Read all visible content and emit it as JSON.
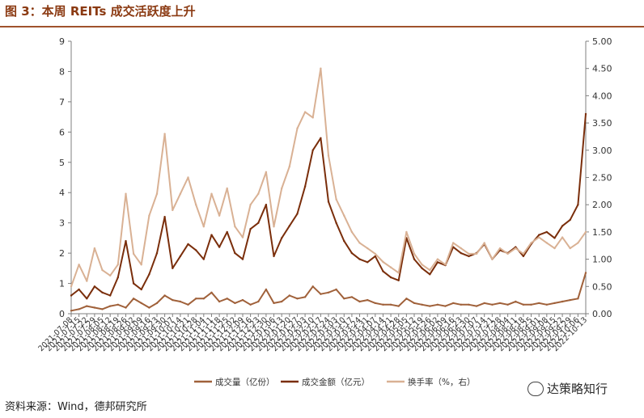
{
  "title": "图 3：本周 REITs 成交活跃度上升",
  "source": "资料来源：Wind，德邦研究所",
  "watermark": "达策略知行",
  "chart_data": {
    "type": "line",
    "y_left": {
      "min": 0,
      "max": 9,
      "ticks": [
        "0",
        "1",
        "2",
        "3",
        "4",
        "5",
        "6",
        "7",
        "8",
        "9"
      ]
    },
    "y_right": {
      "min": 0,
      "max": 5,
      "ticks": [
        "0.00",
        "0.50",
        "1.00",
        "1.50",
        "2.00",
        "2.50",
        "3.00",
        "3.50",
        "4.00",
        "4.50",
        "5.00"
      ]
    },
    "grid": false,
    "legend": "bottom",
    "x_start": "2021-07-08",
    "x_end": "2022-10-13",
    "x_tick_labels": [
      "2021-07-08",
      "2021-07-15",
      "2021-07-22",
      "2021-07-29",
      "2021-08-05",
      "2021-08-12",
      "2021-08-19",
      "2021-08-26",
      "2021-09-02",
      "2021-09-09",
      "2021-09-16",
      "2021-09-23",
      "2021-09-30",
      "2021-10-07",
      "2021-10-14",
      "2021-10-21",
      "2021-10-28",
      "2021-11-04",
      "2021-11-11",
      "2021-11-18",
      "2021-11-25",
      "2021-12-02",
      "2021-12-09",
      "2021-12-16",
      "2021-12-23",
      "2021-12-30",
      "2022-01-06",
      "2022-01-13",
      "2022-01-20",
      "2022-01-27",
      "2022-02-03",
      "2022-02-10",
      "2022-02-17",
      "2022-02-24",
      "2022-03-03",
      "2022-03-10",
      "2022-03-17",
      "2022-03-24",
      "2022-03-31",
      "2022-04-07",
      "2022-04-14",
      "2022-04-21",
      "2022-04-28",
      "2022-05-05",
      "2022-05-12",
      "2022-05-19",
      "2022-05-26",
      "2022-06-02",
      "2022-06-09",
      "2022-06-16",
      "2022-06-23",
      "2022-06-30",
      "2022-07-07",
      "2022-07-14",
      "2022-07-21",
      "2022-07-28",
      "2022-08-04",
      "2022-08-11",
      "2022-08-18",
      "2022-08-25",
      "2022-09-01",
      "2022-09-08",
      "2022-09-15",
      "2022-09-22",
      "2022-09-29",
      "2022-10-06",
      "2022-10-13"
    ],
    "x": [
      "2021-07-08",
      "2021-07-15",
      "2021-07-22",
      "2021-07-29",
      "2021-08-05",
      "2021-08-12",
      "2021-08-19",
      "2021-08-26",
      "2021-09-02",
      "2021-09-09",
      "2021-09-16",
      "2021-09-23",
      "2021-09-30",
      "2021-10-07",
      "2021-10-14",
      "2021-10-21",
      "2021-10-28",
      "2021-11-04",
      "2021-11-11",
      "2021-11-18",
      "2021-11-25",
      "2021-12-02",
      "2021-12-09",
      "2021-12-16",
      "2021-12-23",
      "2021-12-30",
      "2022-01-06",
      "2022-01-13",
      "2022-01-20",
      "2022-01-27",
      "2022-02-03",
      "2022-02-10",
      "2022-02-17",
      "2022-02-24",
      "2022-03-03",
      "2022-03-10",
      "2022-03-17",
      "2022-03-24",
      "2022-03-31",
      "2022-04-07",
      "2022-04-14",
      "2022-04-21",
      "2022-04-28",
      "2022-05-05",
      "2022-05-12",
      "2022-05-19",
      "2022-05-26",
      "2022-06-02",
      "2022-06-09",
      "2022-06-16",
      "2022-06-23",
      "2022-06-30",
      "2022-07-07",
      "2022-07-14",
      "2022-07-21",
      "2022-07-28",
      "2022-08-04",
      "2022-08-11",
      "2022-08-18",
      "2022-08-25",
      "2022-09-01",
      "2022-09-08",
      "2022-09-15",
      "2022-09-22",
      "2022-09-29",
      "2022-10-06",
      "2022-10-13"
    ],
    "series": [
      {
        "name": "成交量（亿份）",
        "axis": "left",
        "color": "#a0613a",
        "values": [
          0.1,
          0.15,
          0.25,
          0.2,
          0.15,
          0.25,
          0.3,
          0.2,
          0.5,
          0.35,
          0.2,
          0.35,
          0.6,
          0.45,
          0.4,
          0.3,
          0.5,
          0.5,
          0.7,
          0.4,
          0.5,
          0.35,
          0.45,
          0.3,
          0.4,
          0.8,
          0.35,
          0.4,
          0.6,
          0.5,
          0.55,
          0.9,
          0.65,
          0.7,
          0.8,
          0.5,
          0.55,
          0.4,
          0.45,
          0.35,
          0.3,
          0.3,
          0.25,
          0.5,
          0.35,
          0.3,
          0.25,
          0.3,
          0.25,
          0.35,
          0.3,
          0.3,
          0.25,
          0.35,
          0.3,
          0.35,
          0.3,
          0.4,
          0.3,
          0.3,
          0.35,
          0.3,
          0.35,
          0.4,
          0.45,
          0.5,
          1.35
        ]
      },
      {
        "name": "成交金额（亿元）",
        "axis": "left",
        "color": "#7a2e0b",
        "values": [
          0.6,
          0.8,
          0.5,
          0.9,
          0.7,
          0.6,
          1.2,
          2.4,
          1.0,
          0.8,
          1.3,
          2.0,
          3.2,
          1.5,
          1.9,
          2.3,
          2.1,
          1.8,
          2.6,
          2.2,
          2.7,
          2.0,
          1.8,
          2.8,
          3.0,
          3.6,
          1.9,
          2.5,
          2.9,
          3.3,
          4.2,
          5.4,
          5.8,
          3.7,
          3.0,
          2.4,
          2.0,
          1.8,
          1.7,
          1.9,
          1.4,
          1.2,
          1.1,
          2.5,
          1.8,
          1.5,
          1.3,
          1.7,
          1.6,
          2.2,
          2.0,
          1.9,
          2.0,
          2.3,
          1.8,
          2.1,
          2.0,
          2.2,
          1.9,
          2.3,
          2.6,
          2.7,
          2.5,
          2.9,
          3.1,
          3.6,
          6.6
        ]
      },
      {
        "name": "换手率（%，右）",
        "axis": "right",
        "color": "#d9b194",
        "values": [
          0.5,
          0.9,
          0.6,
          1.2,
          0.8,
          0.7,
          0.9,
          2.2,
          1.1,
          0.9,
          1.8,
          2.2,
          3.3,
          1.9,
          2.2,
          2.5,
          2.0,
          1.6,
          2.2,
          1.8,
          2.3,
          1.6,
          1.4,
          2.0,
          2.2,
          2.6,
          1.6,
          2.3,
          2.7,
          3.4,
          3.7,
          3.6,
          4.5,
          2.9,
          2.1,
          1.8,
          1.5,
          1.3,
          1.2,
          1.1,
          0.95,
          0.85,
          0.75,
          1.5,
          1.1,
          0.9,
          0.8,
          1.0,
          0.9,
          1.3,
          1.2,
          1.1,
          1.1,
          1.3,
          1.0,
          1.2,
          1.1,
          1.2,
          1.1,
          1.3,
          1.4,
          1.3,
          1.2,
          1.4,
          1.2,
          1.3,
          1.5
        ]
      }
    ]
  }
}
